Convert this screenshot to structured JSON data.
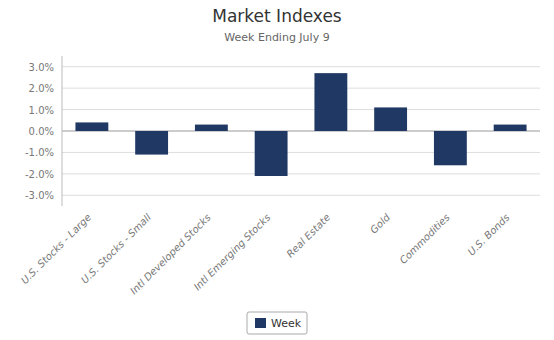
{
  "chart_data": {
    "type": "bar",
    "title": "Market Indexes",
    "subtitle": "Week Ending July 9",
    "categories": [
      "U.S. Stocks - Large",
      "U.S. Stocks - Small",
      "Intl Developed Stocks",
      "Intl Emerging Stocks",
      "Real Estate",
      "Gold",
      "Commodities",
      "U.S. Bonds"
    ],
    "series": [
      {
        "name": "Week",
        "color": "#1F3864",
        "values": [
          0.004,
          -0.011,
          0.003,
          -0.021,
          0.027,
          0.011,
          -0.016,
          0.003
        ]
      }
    ],
    "ylim": [
      -0.035,
      0.035
    ],
    "yticks": [
      {
        "value": -0.03,
        "label": "-3.0%"
      },
      {
        "value": -0.02,
        "label": "-2.0%"
      },
      {
        "value": -0.01,
        "label": "-1.0%"
      },
      {
        "value": 0.0,
        "label": "0.0%"
      },
      {
        "value": 0.01,
        "label": "1.0%"
      },
      {
        "value": 0.02,
        "label": "2.0%"
      },
      {
        "value": 0.03,
        "label": "3.0%"
      }
    ],
    "grid": true,
    "legend": "bottom"
  }
}
